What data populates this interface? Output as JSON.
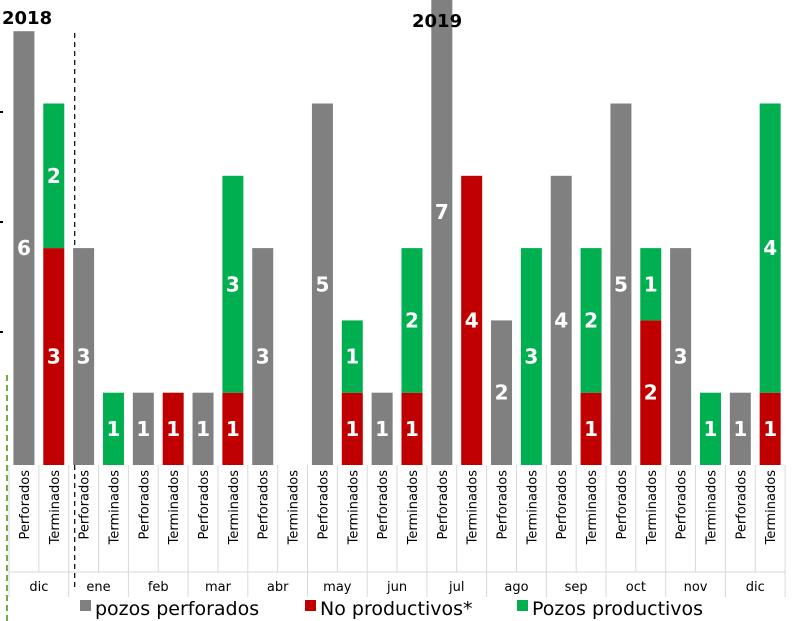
{
  "chart_data": {
    "type": "bar",
    "stacked": true,
    "year_labels": [
      "2018",
      "2019"
    ],
    "months": [
      "dic",
      "ene",
      "feb",
      "mar",
      "abr",
      "may",
      "jun",
      "jul",
      "ago",
      "sep",
      "oct",
      "nov",
      "dic"
    ],
    "bar_types": [
      "Perforados",
      "Terminados"
    ],
    "categories": [
      "dic Perforados",
      "dic Terminados",
      "ene Perforados",
      "ene Terminados",
      "feb Perforados",
      "feb Terminados",
      "mar Perforados",
      "mar Terminados",
      "abr Perforados",
      "abr Terminados",
      "may Perforados",
      "may Terminados",
      "jun Perforados",
      "jun Terminados",
      "jul Perforados",
      "jul Terminados",
      "ago Perforados",
      "ago Terminados",
      "sep Perforados",
      "sep Terminados",
      "oct Perforados",
      "oct Terminados",
      "nov Perforados",
      "nov Terminados",
      "dic Perforados",
      "dic Terminados"
    ],
    "series": [
      {
        "name": "pozos perforados",
        "color": "#808080",
        "values": [
          6,
          0,
          3,
          0,
          1,
          0,
          1,
          0,
          3,
          0,
          5,
          0,
          1,
          0,
          7,
          0,
          2,
          0,
          4,
          0,
          5,
          0,
          3,
          0,
          1,
          0
        ]
      },
      {
        "name": "No productivos*",
        "color": "#c00000",
        "values": [
          0,
          3,
          0,
          0,
          0,
          1,
          0,
          1,
          0,
          0,
          0,
          1,
          0,
          1,
          0,
          4,
          0,
          0,
          0,
          1,
          0,
          2,
          0,
          0,
          0,
          1
        ]
      },
      {
        "name": "Pozos productivos",
        "color": "#00b050",
        "values": [
          0,
          2,
          0,
          1,
          0,
          0,
          0,
          3,
          0,
          0,
          0,
          1,
          0,
          2,
          0,
          0,
          0,
          3,
          0,
          2,
          0,
          1,
          0,
          1,
          0,
          4
        ]
      }
    ],
    "ylim": [
      0,
      7
    ],
    "legend_position": "bottom",
    "grid": false
  }
}
